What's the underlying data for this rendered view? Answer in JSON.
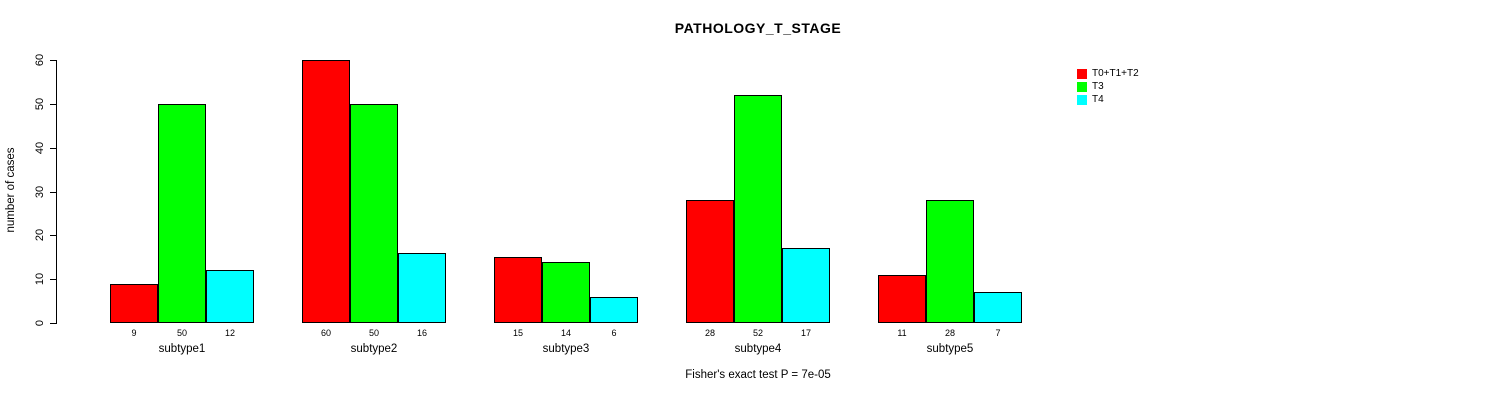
{
  "chart_data": {
    "type": "bar",
    "title": "PATHOLOGY_T_STAGE",
    "ylabel": "number of cases",
    "xlabel": "",
    "caption": "Fisher's exact test P = 7e-05",
    "categories": [
      "subtype1",
      "subtype2",
      "subtype3",
      "subtype4",
      "subtype5"
    ],
    "series": [
      {
        "name": "T0+T1+T2",
        "color": "#ff0000",
        "values": [
          9,
          60,
          15,
          28,
          11
        ]
      },
      {
        "name": "T3",
        "color": "#00ff00",
        "values": [
          50,
          50,
          14,
          52,
          28
        ]
      },
      {
        "name": "T4",
        "color": "#00ffff",
        "values": [
          12,
          16,
          6,
          17,
          7
        ]
      }
    ],
    "ylim": [
      0,
      60
    ],
    "yticks": [
      0,
      10,
      20,
      30,
      40,
      50,
      60
    ],
    "bar_value_labels_shown": true,
    "grid": false,
    "legend_position": "top-right"
  },
  "colors": {
    "background": "#ffffff",
    "axis": "#000000",
    "text": "#000000"
  }
}
